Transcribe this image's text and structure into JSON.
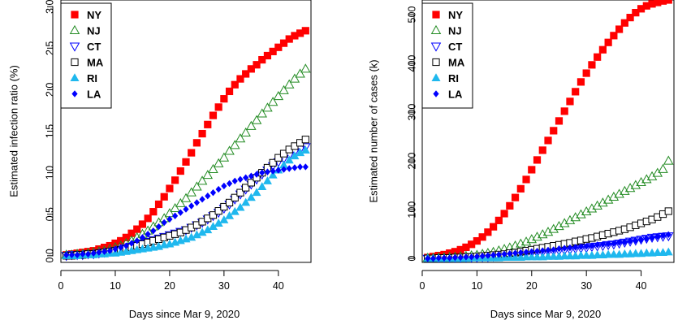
{
  "chart_data": [
    {
      "type": "scatter",
      "xlabel": "Days since Mar 9, 2020",
      "ylabel": "Estimated infection ratio (%)",
      "xlim": [
        0,
        46
      ],
      "ylim": [
        -0.08,
        3.08
      ],
      "xticks": [
        0,
        10,
        20,
        30,
        40
      ],
      "yticks": [
        0.0,
        0.5,
        1.0,
        1.5,
        2.0,
        2.5,
        3.0
      ],
      "ytick_labels": [
        "0.0",
        "0.5",
        "1.0",
        "1.5",
        "2.0",
        "2.5",
        "3.0"
      ],
      "legend_position": "top-left",
      "grid": false,
      "x": [
        1,
        2,
        3,
        4,
        5,
        6,
        7,
        8,
        9,
        10,
        11,
        12,
        13,
        14,
        15,
        16,
        17,
        18,
        19,
        20,
        21,
        22,
        23,
        24,
        25,
        26,
        27,
        28,
        29,
        30,
        31,
        32,
        33,
        34,
        35,
        36,
        37,
        38,
        39,
        40,
        41,
        42,
        43,
        44,
        45
      ],
      "series": [
        {
          "name": "NY",
          "color": "#ff0000",
          "marker": "square-filled",
          "values": [
            0.01,
            0.02,
            0.03,
            0.04,
            0.05,
            0.06,
            0.08,
            0.1,
            0.12,
            0.15,
            0.18,
            0.22,
            0.27,
            0.32,
            0.38,
            0.45,
            0.53,
            0.62,
            0.71,
            0.81,
            0.91,
            1.02,
            1.13,
            1.24,
            1.36,
            1.47,
            1.58,
            1.69,
            1.79,
            1.89,
            1.98,
            2.06,
            2.13,
            2.19,
            2.25,
            2.3,
            2.36,
            2.41,
            2.46,
            2.51,
            2.56,
            2.61,
            2.65,
            2.68,
            2.71
          ]
        },
        {
          "name": "NJ",
          "color": "#228b22",
          "marker": "triangle-up-open",
          "values": [
            0.01,
            0.01,
            0.02,
            0.02,
            0.03,
            0.04,
            0.05,
            0.06,
            0.08,
            0.1,
            0.12,
            0.15,
            0.18,
            0.22,
            0.26,
            0.3,
            0.35,
            0.4,
            0.45,
            0.51,
            0.57,
            0.63,
            0.69,
            0.76,
            0.83,
            0.9,
            0.97,
            1.04,
            1.11,
            1.18,
            1.26,
            1.33,
            1.41,
            1.48,
            1.56,
            1.63,
            1.71,
            1.78,
            1.85,
            1.92,
            1.99,
            2.06,
            2.13,
            2.19,
            2.25
          ]
        },
        {
          "name": "CT",
          "color": "#0000ff",
          "marker": "triangle-down-open",
          "values": [
            0.0,
            0.01,
            0.01,
            0.01,
            0.02,
            0.02,
            0.03,
            0.04,
            0.05,
            0.06,
            0.07,
            0.09,
            0.11,
            0.13,
            0.15,
            0.17,
            0.19,
            0.21,
            0.23,
            0.25,
            0.27,
            0.29,
            0.31,
            0.34,
            0.37,
            0.4,
            0.44,
            0.48,
            0.52,
            0.57,
            0.62,
            0.68,
            0.74,
            0.8,
            0.86,
            0.92,
            0.98,
            1.03,
            1.08,
            1.13,
            1.17,
            1.21,
            1.25,
            1.28,
            1.31
          ]
        },
        {
          "name": "MA",
          "color": "#000000",
          "marker": "square-open",
          "values": [
            0.0,
            0.0,
            0.01,
            0.01,
            0.02,
            0.02,
            0.03,
            0.04,
            0.05,
            0.06,
            0.07,
            0.08,
            0.1,
            0.12,
            0.14,
            0.16,
            0.18,
            0.2,
            0.22,
            0.24,
            0.26,
            0.28,
            0.31,
            0.34,
            0.37,
            0.41,
            0.45,
            0.49,
            0.54,
            0.59,
            0.64,
            0.7,
            0.76,
            0.82,
            0.88,
            0.94,
            1.0,
            1.06,
            1.12,
            1.18,
            1.23,
            1.28,
            1.32,
            1.36,
            1.4
          ]
        },
        {
          "name": "RI",
          "color": "#1fb8ee",
          "marker": "triangle-up-filled",
          "values": [
            0.0,
            0.0,
            0.0,
            0.01,
            0.01,
            0.01,
            0.02,
            0.02,
            0.03,
            0.03,
            0.04,
            0.05,
            0.06,
            0.07,
            0.08,
            0.09,
            0.1,
            0.11,
            0.13,
            0.14,
            0.16,
            0.18,
            0.2,
            0.22,
            0.25,
            0.28,
            0.31,
            0.35,
            0.39,
            0.43,
            0.48,
            0.53,
            0.58,
            0.64,
            0.7,
            0.76,
            0.83,
            0.9,
            0.97,
            1.03,
            1.09,
            1.15,
            1.2,
            1.24,
            1.27
          ]
        },
        {
          "name": "LA",
          "color": "#0000ff",
          "marker": "diamond-filled",
          "values": [
            0.01,
            0.01,
            0.01,
            0.02,
            0.02,
            0.03,
            0.04,
            0.05,
            0.06,
            0.08,
            0.1,
            0.12,
            0.15,
            0.18,
            0.22,
            0.26,
            0.3,
            0.35,
            0.4,
            0.44,
            0.48,
            0.52,
            0.56,
            0.6,
            0.64,
            0.68,
            0.72,
            0.76,
            0.8,
            0.84,
            0.87,
            0.9,
            0.92,
            0.94,
            0.96,
            0.98,
            1.0,
            1.01,
            1.02,
            1.03,
            1.04,
            1.05,
            1.06,
            1.07,
            1.07
          ]
        }
      ]
    },
    {
      "type": "scatter",
      "xlabel": "Days since Mar 9, 2020",
      "ylabel": "Estimated number of cases (k)",
      "xlim": [
        0,
        46
      ],
      "ylim": [
        -8,
        530
      ],
      "xticks": [
        0,
        10,
        20,
        30,
        40
      ],
      "yticks": [
        0,
        100,
        200,
        300,
        400,
        500
      ],
      "ytick_labels": [
        "0",
        "100",
        "200",
        "300",
        "400",
        "500"
      ],
      "legend_position": "top-left",
      "grid": false,
      "x": [
        1,
        2,
        3,
        4,
        5,
        6,
        7,
        8,
        9,
        10,
        11,
        12,
        13,
        14,
        15,
        16,
        17,
        18,
        19,
        20,
        21,
        22,
        23,
        24,
        25,
        26,
        27,
        28,
        29,
        30,
        31,
        32,
        33,
        34,
        35,
        36,
        37,
        38,
        39,
        40,
        41,
        42,
        43,
        44,
        45
      ],
      "series": [
        {
          "name": "NY",
          "color": "#ff0000",
          "marker": "square-filled",
          "values": [
            2,
            4,
            6,
            8,
            11,
            14,
            18,
            23,
            29,
            36,
            44,
            54,
            65,
            78,
            92,
            108,
            125,
            143,
            162,
            182,
            202,
            222,
            242,
            262,
            282,
            302,
            322,
            342,
            362,
            380,
            397,
            413,
            428,
            443,
            457,
            470,
            483,
            494,
            504,
            512,
            518,
            522,
            525,
            528,
            530
          ]
        },
        {
          "name": "NJ",
          "color": "#228b22",
          "marker": "triangle-up-open",
          "values": [
            1,
            1,
            2,
            2,
            3,
            3,
            4,
            5,
            6,
            7,
            9,
            11,
            13,
            16,
            19,
            22,
            26,
            30,
            34,
            39,
            44,
            49,
            54,
            60,
            66,
            72,
            78,
            84,
            90,
            96,
            102,
            108,
            114,
            120,
            126,
            132,
            138,
            144,
            150,
            156,
            162,
            168,
            175,
            183,
            200
          ]
        },
        {
          "name": "CT",
          "color": "#0000ff",
          "marker": "triangle-down-open",
          "values": [
            0,
            0,
            0,
            1,
            1,
            1,
            1,
            2,
            2,
            2,
            3,
            3,
            4,
            5,
            6,
            7,
            8,
            9,
            10,
            11,
            12,
            13,
            14,
            15,
            16,
            17,
            18,
            20,
            21,
            22,
            24,
            25,
            26,
            28,
            29,
            31,
            33,
            35,
            37,
            39,
            41,
            43,
            44,
            45,
            46
          ]
        },
        {
          "name": "MA",
          "color": "#000000",
          "marker": "square-open",
          "values": [
            0,
            0,
            1,
            1,
            1,
            2,
            2,
            3,
            3,
            4,
            5,
            6,
            7,
            8,
            9,
            11,
            12,
            14,
            16,
            18,
            20,
            22,
            24,
            26,
            28,
            30,
            32,
            35,
            37,
            40,
            42,
            45,
            48,
            51,
            54,
            57,
            60,
            64,
            68,
            72,
            76,
            80,
            85,
            91,
            97
          ]
        },
        {
          "name": "RI",
          "color": "#1fb8ee",
          "marker": "triangle-up-filled",
          "values": [
            0,
            0,
            0,
            0,
            0,
            0,
            0,
            0,
            1,
            1,
            1,
            1,
            1,
            1,
            2,
            2,
            2,
            2,
            3,
            3,
            3,
            3,
            4,
            4,
            4,
            5,
            5,
            5,
            6,
            6,
            6,
            7,
            7,
            8,
            8,
            8,
            9,
            9,
            10,
            10,
            11,
            11,
            12,
            12,
            13
          ]
        },
        {
          "name": "LA",
          "color": "#0000ff",
          "marker": "diamond-filled",
          "values": [
            0,
            0,
            1,
            1,
            1,
            2,
            2,
            3,
            3,
            4,
            5,
            6,
            7,
            8,
            9,
            10,
            11,
            12,
            13,
            14,
            15,
            16,
            17,
            18,
            20,
            21,
            22,
            23,
            24,
            25,
            26,
            28,
            29,
            30,
            31,
            33,
            34,
            36,
            37,
            39,
            41,
            43,
            45,
            47,
            49
          ]
        }
      ]
    }
  ]
}
